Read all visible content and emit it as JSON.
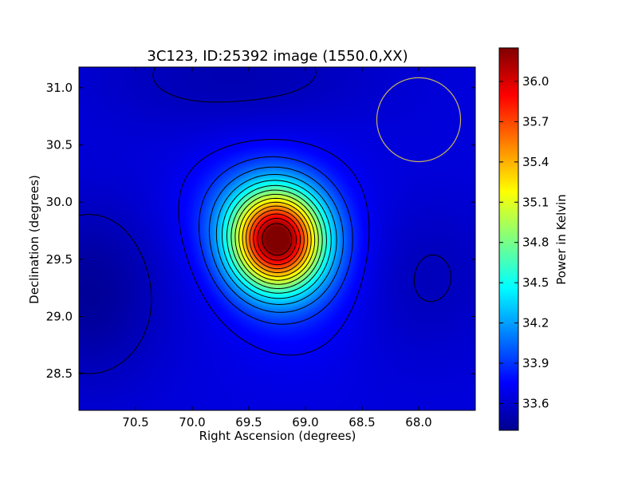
{
  "chart_data": {
    "type": "heatmap",
    "title": "3C123, ID:25392 image (1550.0,XX)",
    "xlabel": "Right Ascension (degrees)",
    "ylabel": "Declination (degrees)",
    "xlim": [
      71.0,
      67.5
    ],
    "ylim": [
      28.18,
      31.18
    ],
    "x_axis_inverted": true,
    "x_ticks": [
      {
        "value": 70.5,
        "label": "70.5"
      },
      {
        "value": 70.0,
        "label": "70.0"
      },
      {
        "value": 69.5,
        "label": "69.5"
      },
      {
        "value": 69.0,
        "label": "69.0"
      },
      {
        "value": 68.5,
        "label": "68.5"
      },
      {
        "value": 68.0,
        "label": "68.0"
      }
    ],
    "y_ticks": [
      {
        "value": 28.5,
        "label": "28.5"
      },
      {
        "value": 29.0,
        "label": "29.0"
      },
      {
        "value": 29.5,
        "label": "29.5"
      },
      {
        "value": 30.0,
        "label": "30.0"
      },
      {
        "value": 30.5,
        "label": "30.5"
      },
      {
        "value": 31.0,
        "label": "31.0"
      }
    ],
    "colorbar": {
      "label": "Power in Kelvin",
      "colormap": "jet",
      "range": [
        33.4,
        36.25
      ],
      "ticks": [
        {
          "value": 33.6,
          "label": "33.6"
        },
        {
          "value": 33.9,
          "label": "33.9"
        },
        {
          "value": 34.2,
          "label": "34.2"
        },
        {
          "value": 34.5,
          "label": "34.5"
        },
        {
          "value": 34.8,
          "label": "34.8"
        },
        {
          "value": 35.1,
          "label": "35.1"
        },
        {
          "value": 35.4,
          "label": "35.4"
        },
        {
          "value": 35.7,
          "label": "35.7"
        },
        {
          "value": 36.0,
          "label": "36.0"
        }
      ]
    },
    "peak": {
      "ra": 69.25,
      "dec": 29.67,
      "value": 36.2
    },
    "background_level": 33.6,
    "contour_count": 16,
    "beam_circle": {
      "ra": 68.0,
      "dec": 30.72,
      "radius_deg": 0.37,
      "color": "#c8b45a"
    },
    "grid": false,
    "legend": "none"
  }
}
